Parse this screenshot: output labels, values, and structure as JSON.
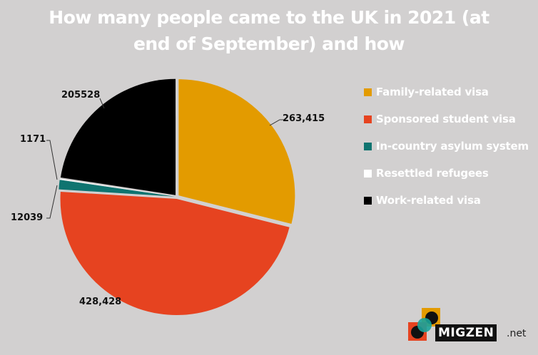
{
  "title": {
    "line1": "How many people came to the UK in 2021 (at",
    "line2": "end of September) and how"
  },
  "legend": [
    {
      "label": "Family-related visa",
      "color": "#e39b00"
    },
    {
      "label": "Sponsored student visa",
      "color": "#e64320"
    },
    {
      "label": "In-country asylum system",
      "color": "#0f7470"
    },
    {
      "label": "Resettled refugees",
      "color": "#ffffff"
    },
    {
      "label": "Work-related visa",
      "color": "#000000"
    }
  ],
  "data_labels": {
    "family": "263,415",
    "student": "428,428",
    "asylum": "12039",
    "resettled": "1171",
    "work": "205528"
  },
  "logo": {
    "word": "MIGZEN",
    "tld": ".net"
  },
  "chart_data": {
    "type": "pie",
    "title": "How many people came to the UK in 2021 (at end of September) and how",
    "categories": [
      "Family-related visa",
      "Sponsored student visa",
      "In-country asylum system",
      "Resettled refugees",
      "Work-related visa"
    ],
    "values": [
      263415,
      428428,
      12039,
      1171,
      205528
    ],
    "colors": [
      "#e39b00",
      "#e64320",
      "#0f7470",
      "#ffffff",
      "#000000"
    ],
    "start_angle": "12 o'clock",
    "direction": "clockwise",
    "legend_position": "right"
  }
}
